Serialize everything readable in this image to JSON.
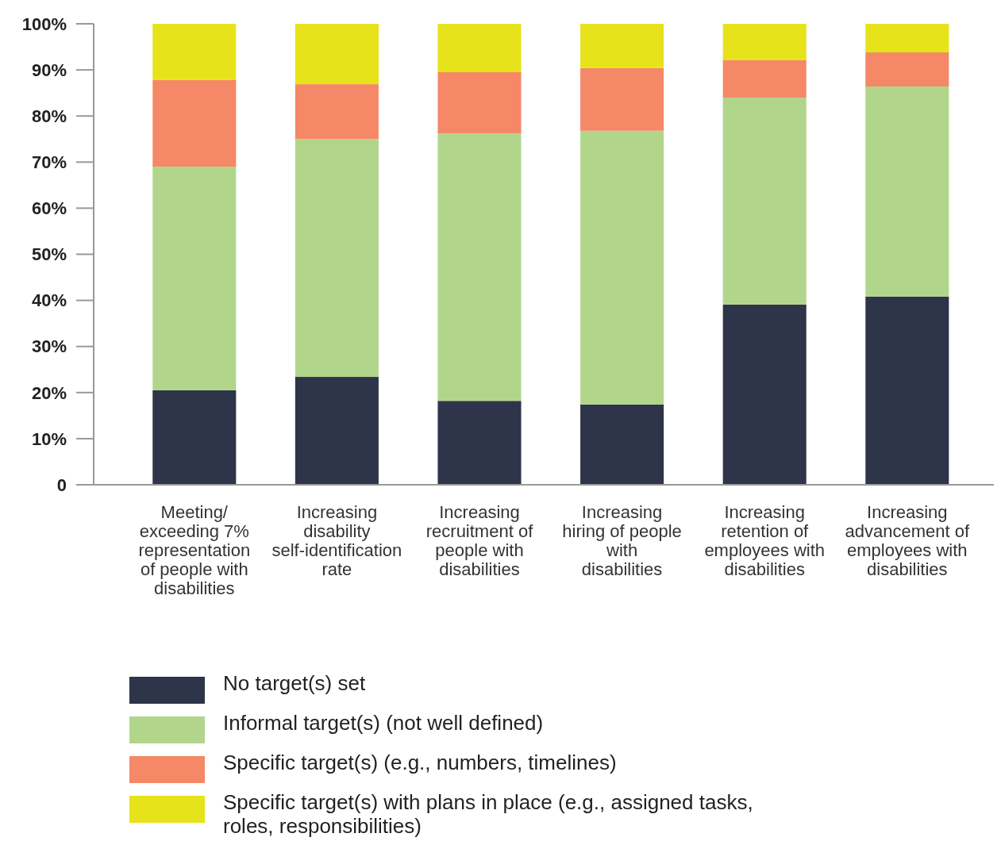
{
  "chart_data": {
    "type": "bar",
    "stacked": true,
    "categories": [
      "Meeting/ exceeding 7% representation of people with disabilities",
      "Increasing disability self-identification rate",
      "Increasing recruitment of people with disabilities",
      "Increasing hiring of people with disabilities",
      "Increasing retention of employees with disabilities",
      "Increasing advancement of employees with disabilities"
    ],
    "series": [
      {
        "name": "No target(s) set",
        "color": "#2e3449",
        "values": [
          20.5,
          23.4,
          18.2,
          17.4,
          39.1,
          40.8
        ]
      },
      {
        "name": "Informal target(s) (not well defined)",
        "color": "#b1d68b",
        "values": [
          48.5,
          51.6,
          58.0,
          59.4,
          44.9,
          45.6
        ]
      },
      {
        "name": "Specific target(s) (e.g., numbers, timelines)",
        "color": "#f58866",
        "values": [
          18.8,
          11.9,
          13.3,
          13.6,
          8.1,
          7.4
        ]
      },
      {
        "name": "Specific target(s) with plans in place (e.g., assigned tasks, roles, responsibilities)",
        "color": "#e6e31a",
        "values": [
          12.2,
          13.1,
          10.5,
          9.6,
          7.9,
          6.2
        ]
      }
    ],
    "ylim": [
      0,
      100
    ],
    "yticks": [
      0,
      {
        "value": 10,
        "label": "10%"
      },
      {
        "value": 20,
        "label": "20%"
      },
      {
        "value": 30,
        "label": "30%"
      },
      {
        "value": 40,
        "label": "40%"
      },
      {
        "value": 50,
        "label": "50%"
      },
      {
        "value": 60,
        "label": "60%"
      },
      {
        "value": 70,
        "label": "70%"
      },
      {
        "value": 80,
        "label": "80%"
      },
      {
        "value": 90,
        "label": "90%"
      },
      {
        "value": 100,
        "label": "100%"
      }
    ],
    "grid": false,
    "legend": "bottom"
  }
}
